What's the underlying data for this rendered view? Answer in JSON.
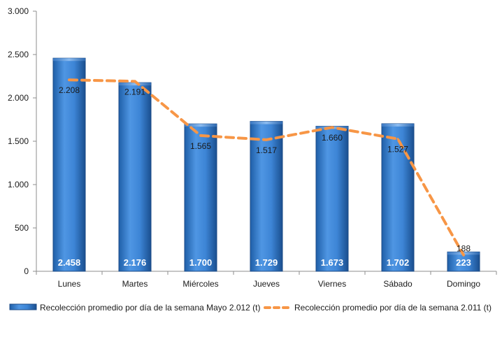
{
  "chart_data": {
    "type": "bar",
    "categories": [
      "Lunes",
      "Martes",
      "Miércoles",
      "Jueves",
      "Viernes",
      "Sábado",
      "Domingo"
    ],
    "series": [
      {
        "name": "Recolección promedio por día de la semana Mayo 2.012 (t)",
        "type": "bar",
        "values": [
          2458,
          2176,
          1700,
          1729,
          1673,
          1702,
          223
        ],
        "value_labels": [
          "2.458",
          "2.176",
          "1.700",
          "1.729",
          "1.673",
          "1.702",
          "223"
        ],
        "color": "#2e75c9"
      },
      {
        "name": "Recolección promedio por día de la semana 2.011 (t)",
        "type": "line",
        "style": "dashed",
        "values": [
          2208,
          2191,
          1565,
          1517,
          1660,
          1527,
          188
        ],
        "value_labels": [
          "2.208",
          "2.191",
          "1.565",
          "1.517",
          "1.660",
          "1.527",
          "188"
        ],
        "color": "#f79646"
      }
    ],
    "ylim": [
      0,
      3000
    ],
    "yticks": [
      0,
      500,
      1000,
      1500,
      2000,
      2500,
      3000
    ],
    "ytick_labels": [
      "0",
      "500",
      "1.000",
      "1.500",
      "2.000",
      "2.500",
      "3.000"
    ],
    "grid": false,
    "legend_position": "bottom"
  }
}
